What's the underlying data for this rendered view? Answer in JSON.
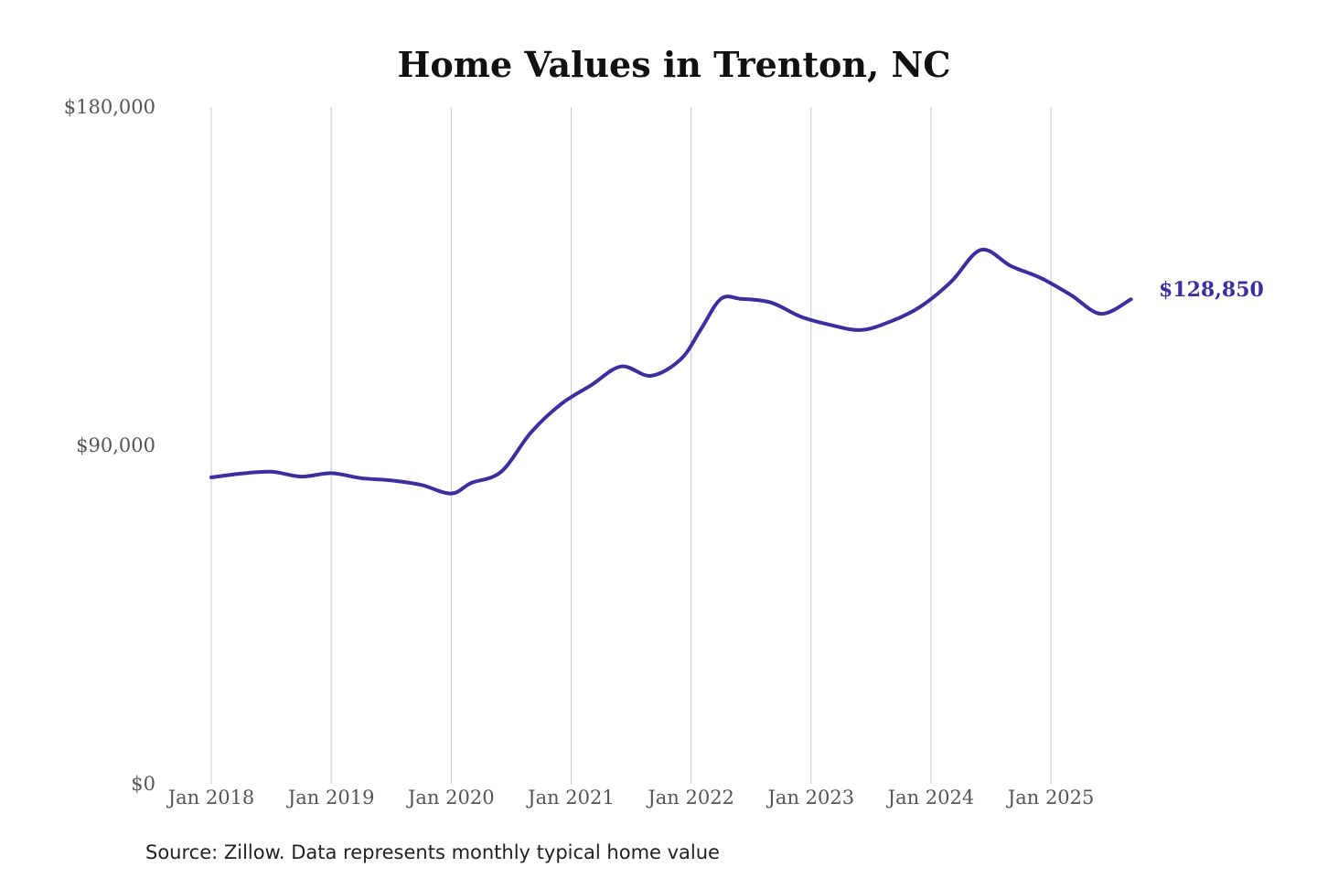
{
  "chart_data": {
    "type": "line",
    "title": "Home Values in Trenton, NC",
    "source": "Source: Zillow. Data represents monthly typical home value",
    "xlabel": "",
    "ylabel": "",
    "ylim": [
      0,
      180000
    ],
    "y_ticks": [
      {
        "value": 0,
        "label": "$0"
      },
      {
        "value": 90000,
        "label": "$90,000"
      },
      {
        "value": 180000,
        "label": "$180,000"
      }
    ],
    "x_ticks": [
      {
        "value": "2018-01",
        "label": "Jan 2018"
      },
      {
        "value": "2019-01",
        "label": "Jan 2019"
      },
      {
        "value": "2020-01",
        "label": "Jan 2020"
      },
      {
        "value": "2021-01",
        "label": "Jan 2021"
      },
      {
        "value": "2022-01",
        "label": "Jan 2022"
      },
      {
        "value": "2023-01",
        "label": "Jan 2023"
      },
      {
        "value": "2024-01",
        "label": "Jan 2024"
      },
      {
        "value": "2025-01",
        "label": "Jan 2025"
      }
    ],
    "grid": {
      "vertical": true,
      "horizontal": false
    },
    "line_color": "#3a2f9c",
    "end_label": "$128,850",
    "series": [
      {
        "x": [
          "2018-01",
          "2018-04",
          "2018-07",
          "2018-10",
          "2019-01",
          "2019-04",
          "2019-07",
          "2019-10",
          "2020-01",
          "2020-03",
          "2020-06",
          "2020-09",
          "2020-12",
          "2021-03",
          "2021-06",
          "2021-09",
          "2021-12",
          "2022-02",
          "2022-04",
          "2022-06",
          "2022-09",
          "2022-12",
          "2023-03",
          "2023-06",
          "2023-09",
          "2023-12",
          "2024-03",
          "2024-06",
          "2024-09",
          "2024-12",
          "2025-03",
          "2025-06",
          "2025-09"
        ],
        "values": [
          81500,
          82500,
          83000,
          81700,
          82600,
          81300,
          80700,
          79500,
          77200,
          80000,
          83000,
          93500,
          101000,
          106000,
          111000,
          108500,
          113000,
          121000,
          129000,
          129000,
          128000,
          124200,
          122000,
          120700,
          123000,
          127000,
          133500,
          142000,
          137700,
          134500,
          130000,
          125000,
          128850
        ]
      }
    ]
  }
}
